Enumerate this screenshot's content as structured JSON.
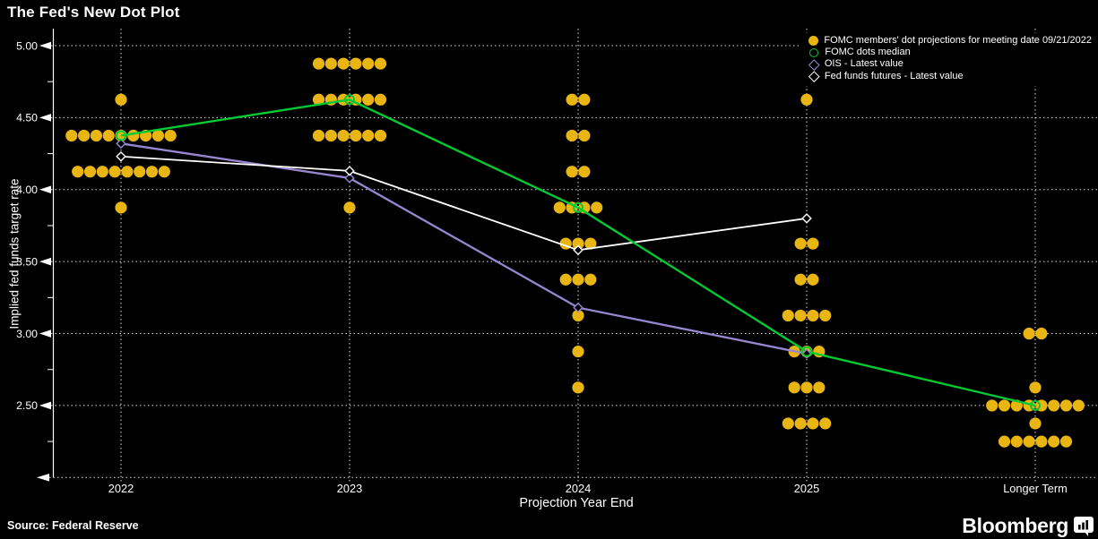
{
  "page": {
    "title": "The Fed's New Dot Plot",
    "source": "Source: Federal Reserve",
    "brand": "Bloomberg"
  },
  "chart_data": {
    "type": "scatter",
    "title": "The Fed's New Dot Plot",
    "xlabel": "Projection Year End",
    "ylabel": "Implied fed funds target rate",
    "categories": [
      "2022",
      "2023",
      "2024",
      "2025",
      "Longer Term"
    ],
    "ylim": [
      2.0,
      5.05
    ],
    "yticks_major": [
      2.5,
      3.0,
      3.5,
      4.0,
      4.5,
      5.0
    ],
    "yticks_minor": [
      2.25,
      2.75,
      3.25,
      3.75,
      4.25,
      4.75
    ],
    "grid": "dotted white horizontal at major ticks and vertical at each category",
    "legend_position": "top-right",
    "background": "#000000",
    "dot_projections": {
      "marker": "filled-circle",
      "color": "#E8B512",
      "groups": [
        {
          "category": "2022",
          "dots": [
            {
              "rate": 4.625,
              "count": 1
            },
            {
              "rate": 4.375,
              "count": 9
            },
            {
              "rate": 4.125,
              "count": 8
            },
            {
              "rate": 3.875,
              "count": 1
            }
          ]
        },
        {
          "category": "2023",
          "dots": [
            {
              "rate": 4.875,
              "count": 6
            },
            {
              "rate": 4.625,
              "count": 6
            },
            {
              "rate": 4.375,
              "count": 6
            },
            {
              "rate": 3.875,
              "count": 1
            }
          ]
        },
        {
          "category": "2024",
          "dots": [
            {
              "rate": 4.625,
              "count": 2
            },
            {
              "rate": 4.375,
              "count": 2
            },
            {
              "rate": 4.125,
              "count": 2
            },
            {
              "rate": 3.875,
              "count": 4
            },
            {
              "rate": 3.625,
              "count": 3
            },
            {
              "rate": 3.375,
              "count": 3
            },
            {
              "rate": 3.125,
              "count": 1
            },
            {
              "rate": 2.875,
              "count": 1
            },
            {
              "rate": 2.625,
              "count": 1
            }
          ]
        },
        {
          "category": "2025",
          "dots": [
            {
              "rate": 4.625,
              "count": 1
            },
            {
              "rate": 3.625,
              "count": 2
            },
            {
              "rate": 3.375,
              "count": 2
            },
            {
              "rate": 3.125,
              "count": 4
            },
            {
              "rate": 2.875,
              "count": 3
            },
            {
              "rate": 2.625,
              "count": 3
            },
            {
              "rate": 2.375,
              "count": 4
            }
          ]
        },
        {
          "category": "Longer Term",
          "dots": [
            {
              "rate": 3.0,
              "count": 2
            },
            {
              "rate": 2.625,
              "count": 1
            },
            {
              "rate": 2.5,
              "count": 8
            },
            {
              "rate": 2.375,
              "count": 1
            },
            {
              "rate": 2.25,
              "count": 6
            }
          ]
        }
      ]
    },
    "series": [
      {
        "name": "FOMC members' dot projections for meeting date 09/21/2022",
        "type": "dots",
        "marker": "filled-circle",
        "color": "#E8B512"
      },
      {
        "name": "FOMC dots median",
        "type": "line",
        "marker": "open-circle",
        "color": "#00CB33",
        "values": [
          4.375,
          4.625,
          3.875,
          2.875,
          2.5
        ]
      },
      {
        "name": "OIS - Latest value",
        "type": "line",
        "marker": "open-diamond",
        "color": "#9886D1",
        "values": [
          4.32,
          4.08,
          3.18,
          2.86,
          null
        ]
      },
      {
        "name": "Fed funds futures - Latest value",
        "type": "line",
        "marker": "open-diamond",
        "color": "#FFFFFF",
        "values": [
          4.23,
          4.13,
          3.58,
          3.8,
          null
        ]
      }
    ]
  }
}
